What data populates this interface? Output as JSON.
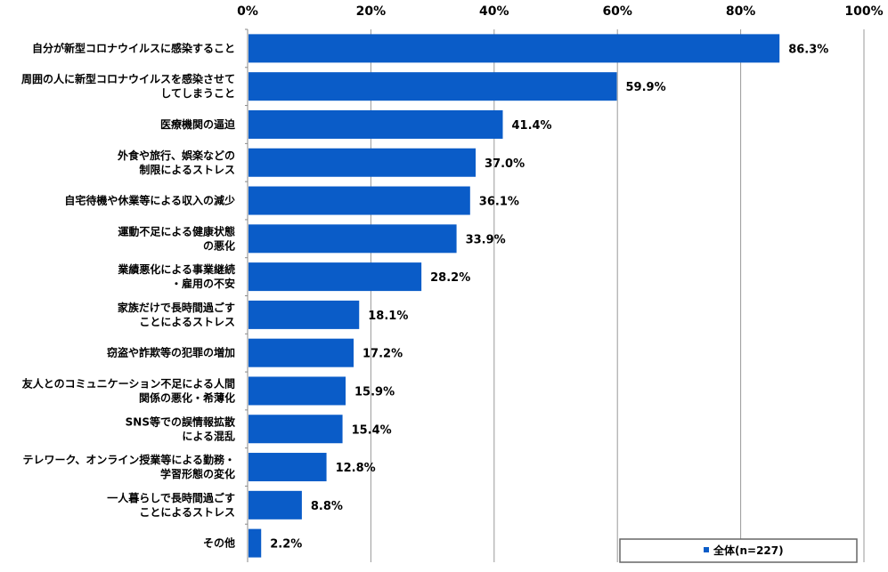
{
  "chart_data": {
    "type": "bar",
    "orientation": "horizontal",
    "categories": [
      [
        "自分が新型コロナウイルスに感染すること"
      ],
      [
        "周囲の人に新型コロナウイルスを感染させて",
        "してしまうこと"
      ],
      [
        "医療機関の逼迫"
      ],
      [
        "外食や旅行、娯楽などの",
        "制限によるストレス"
      ],
      [
        "自宅待機や休業等による収入の減少"
      ],
      [
        "運動不足による健康状態",
        "の悪化"
      ],
      [
        "業績悪化による事業継続",
        "・雇用の不安"
      ],
      [
        "家族だけで長時間過ごす",
        "ことによるストレス"
      ],
      [
        "窃盗や詐欺等の犯罪の増加"
      ],
      [
        "友人とのコミュニケーション不足による人間",
        "関係の悪化・希薄化"
      ],
      [
        "SNS等での誤情報拡散",
        "による混乱"
      ],
      [
        "テレワーク、オンライン授業等による勤務・",
        "学習形態の変化"
      ],
      [
        "一人暮らしで長時間過ごす",
        "ことによるストレス"
      ],
      [
        "その他"
      ]
    ],
    "series": [
      {
        "name": "全体(n=227)",
        "values": [
          86.3,
          59.9,
          41.4,
          37.0,
          36.1,
          33.9,
          28.2,
          18.1,
          17.2,
          15.9,
          15.4,
          12.8,
          8.8,
          2.2
        ],
        "labels": [
          "86.3%",
          "59.9%",
          "41.4%",
          "37.0%",
          "36.1%",
          "33.9%",
          "28.2%",
          "18.1%",
          "17.2%",
          "15.9%",
          "15.4%",
          "12.8%",
          "8.8%",
          "2.2%"
        ]
      }
    ],
    "xlim": [
      0,
      100
    ],
    "xticks": [
      0,
      20,
      40,
      60,
      80,
      100
    ],
    "xtick_labels": [
      "0%",
      "20%",
      "40%",
      "60%",
      "80%",
      "100%"
    ],
    "grid": "vertical",
    "legend_position": "bottom-right",
    "colors": {
      "bar": "#0a5cc8",
      "grid": "#999999",
      "axis": "#888888",
      "legend_border": "#666666"
    }
  }
}
